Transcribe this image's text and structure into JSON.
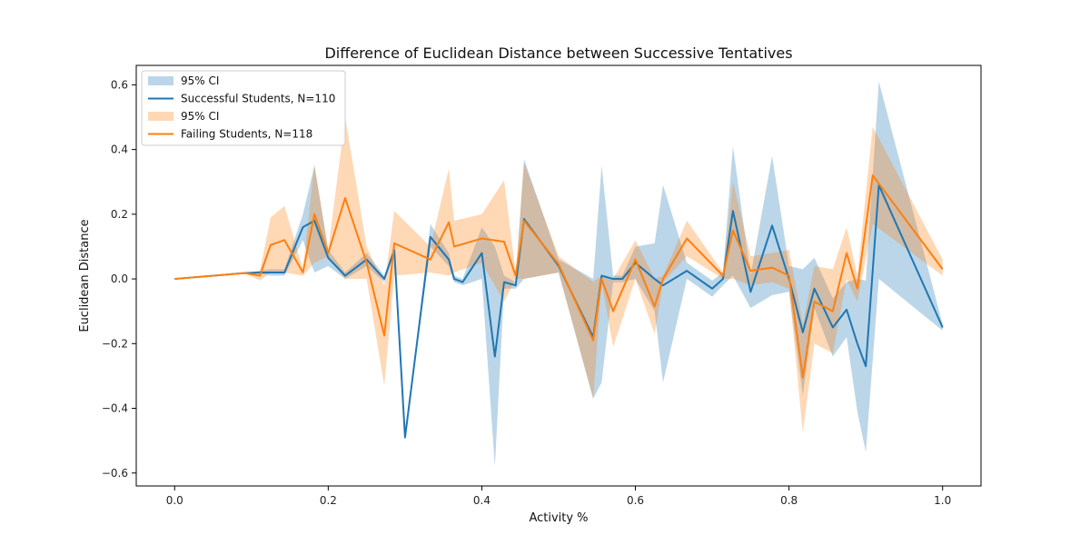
{
  "chart_data": {
    "type": "line",
    "title": "Difference of Euclidean Distance between Successive Tentatives",
    "xlabel": "Activity %",
    "ylabel": "Euclidean Distance",
    "xlim": [
      -0.05,
      1.05
    ],
    "ylim": [
      -0.64,
      0.66
    ],
    "xticks": [
      0.0,
      0.2,
      0.4,
      0.6,
      0.8,
      1.0
    ],
    "xtick_labels": [
      "0.0",
      "0.2",
      "0.4",
      "0.6",
      "0.8",
      "1.0"
    ],
    "yticks": [
      -0.6,
      -0.4,
      -0.2,
      0.0,
      0.2,
      0.4,
      0.6
    ],
    "ytick_labels": [
      "−0.6",
      "−0.4",
      "−0.2",
      "0.0",
      "0.2",
      "0.4",
      "0.6"
    ],
    "grid": false,
    "legend_position": "top-left",
    "series": [
      {
        "name": "Successful Students, N=110",
        "ci_label": "95% CI",
        "color": "#1f77b4",
        "ci_color": "#1f77b4",
        "points": [
          [
            0.0,
            0.0,
            0.0,
            0.0
          ],
          [
            0.091,
            0.018,
            0.018,
            0.018
          ],
          [
            0.111,
            0.02,
            0.015,
            0.025
          ],
          [
            0.125,
            0.02,
            0.01,
            0.03
          ],
          [
            0.143,
            0.02,
            0.01,
            0.03
          ],
          [
            0.167,
            0.16,
            0.12,
            0.2
          ],
          [
            0.182,
            0.18,
            0.02,
            0.35
          ],
          [
            0.2,
            0.065,
            0.04,
            0.09
          ],
          [
            0.222,
            0.01,
            0.0,
            0.02
          ],
          [
            0.25,
            0.06,
            0.04,
            0.08
          ],
          [
            0.273,
            0.0,
            -0.01,
            0.01
          ],
          [
            0.286,
            0.09,
            0.08,
            0.1
          ],
          [
            0.3,
            -0.49,
            -0.49,
            -0.49
          ],
          [
            0.333,
            0.13,
            0.1,
            0.17
          ],
          [
            0.357,
            0.06,
            0.04,
            0.08
          ],
          [
            0.364,
            0.0,
            -0.01,
            0.01
          ],
          [
            0.375,
            -0.01,
            -0.02,
            0.0
          ],
          [
            0.4,
            0.08,
            0.0,
            0.16
          ],
          [
            0.417,
            -0.24,
            -0.58,
            0.1
          ],
          [
            0.429,
            -0.01,
            -0.03,
            0.01
          ],
          [
            0.444,
            -0.02,
            -0.03,
            -0.01
          ],
          [
            0.455,
            0.185,
            0.0,
            0.37
          ],
          [
            0.5,
            0.04,
            0.02,
            0.06
          ],
          [
            0.545,
            -0.18,
            -0.37,
            0.0
          ],
          [
            0.556,
            0.01,
            -0.32,
            0.35
          ],
          [
            0.571,
            0.0,
            -0.01,
            0.01
          ],
          [
            0.583,
            0.0,
            -0.01,
            0.01
          ],
          [
            0.6,
            0.05,
            0.0,
            0.1
          ],
          [
            0.625,
            0.0,
            -0.1,
            0.11
          ],
          [
            0.636,
            -0.02,
            -0.32,
            0.29
          ],
          [
            0.667,
            0.025,
            0.0,
            0.05
          ],
          [
            0.7,
            -0.03,
            -0.055,
            -0.005
          ],
          [
            0.714,
            0.0,
            -0.02,
            0.02
          ],
          [
            0.727,
            0.21,
            0.01,
            0.41
          ],
          [
            0.75,
            -0.04,
            -0.09,
            0.01
          ],
          [
            0.778,
            0.165,
            -0.05,
            0.38
          ],
          [
            0.8,
            0.0,
            -0.04,
            0.04
          ],
          [
            0.818,
            -0.165,
            -0.36,
            0.03
          ],
          [
            0.833,
            -0.03,
            -0.09,
            0.065
          ],
          [
            0.857,
            -0.15,
            -0.24,
            -0.06
          ],
          [
            0.875,
            -0.095,
            -0.18,
            -0.01
          ],
          [
            0.889,
            -0.2,
            -0.41,
            0.0
          ],
          [
            0.9,
            -0.27,
            -0.535,
            -0.005
          ],
          [
            0.917,
            0.29,
            0.0,
            0.61
          ],
          [
            1.0,
            -0.15,
            -0.16,
            -0.14
          ]
        ]
      },
      {
        "name": "Failing Students, N=118",
        "ci_label": "95% CI",
        "color": "#ff7f0e",
        "ci_color": "#ff7f0e",
        "points": [
          [
            0.0,
            0.0,
            0.0,
            0.0
          ],
          [
            0.091,
            0.018,
            0.018,
            0.018
          ],
          [
            0.111,
            0.01,
            -0.005,
            0.025
          ],
          [
            0.125,
            0.105,
            0.02,
            0.19
          ],
          [
            0.143,
            0.12,
            0.02,
            0.225
          ],
          [
            0.167,
            0.02,
            0.01,
            0.03
          ],
          [
            0.182,
            0.2,
            0.05,
            0.355
          ],
          [
            0.2,
            0.08,
            0.07,
            0.09
          ],
          [
            0.222,
            0.25,
            0.0,
            0.5
          ],
          [
            0.25,
            0.05,
            0.0,
            0.1
          ],
          [
            0.273,
            -0.175,
            -0.33,
            -0.02
          ],
          [
            0.286,
            0.11,
            0.01,
            0.21
          ],
          [
            0.333,
            0.06,
            0.02,
            0.1
          ],
          [
            0.357,
            0.175,
            0.01,
            0.34
          ],
          [
            0.364,
            0.1,
            0.02,
            0.18
          ],
          [
            0.4,
            0.125,
            0.05,
            0.2
          ],
          [
            0.429,
            0.115,
            -0.07,
            0.305
          ],
          [
            0.444,
            0.01,
            0.0,
            0.02
          ],
          [
            0.455,
            0.18,
            0.0,
            0.36
          ],
          [
            0.5,
            0.045,
            0.02,
            0.07
          ],
          [
            0.545,
            -0.19,
            -0.37,
            -0.01
          ],
          [
            0.556,
            0.0,
            -0.01,
            0.01
          ],
          [
            0.571,
            -0.1,
            -0.21,
            0.0
          ],
          [
            0.6,
            0.06,
            0.0,
            0.12
          ],
          [
            0.625,
            -0.085,
            -0.17,
            0.0
          ],
          [
            0.636,
            0.0,
            -0.01,
            0.01
          ],
          [
            0.667,
            0.125,
            0.07,
            0.18
          ],
          [
            0.714,
            0.01,
            0.0,
            0.02
          ],
          [
            0.727,
            0.15,
            0.0,
            0.3
          ],
          [
            0.75,
            0.025,
            -0.02,
            0.07
          ],
          [
            0.778,
            0.035,
            -0.01,
            0.08
          ],
          [
            0.8,
            0.01,
            -0.03,
            0.09
          ],
          [
            0.818,
            -0.305,
            -0.475,
            -0.14
          ],
          [
            0.833,
            -0.07,
            -0.2,
            0.04
          ],
          [
            0.857,
            -0.1,
            -0.23,
            0.03
          ],
          [
            0.875,
            0.08,
            0.0,
            0.16
          ],
          [
            0.889,
            -0.03,
            -0.07,
            0.01
          ],
          [
            0.909,
            0.32,
            0.17,
            0.47
          ],
          [
            1.0,
            0.03,
            0.01,
            0.06
          ]
        ]
      }
    ]
  }
}
